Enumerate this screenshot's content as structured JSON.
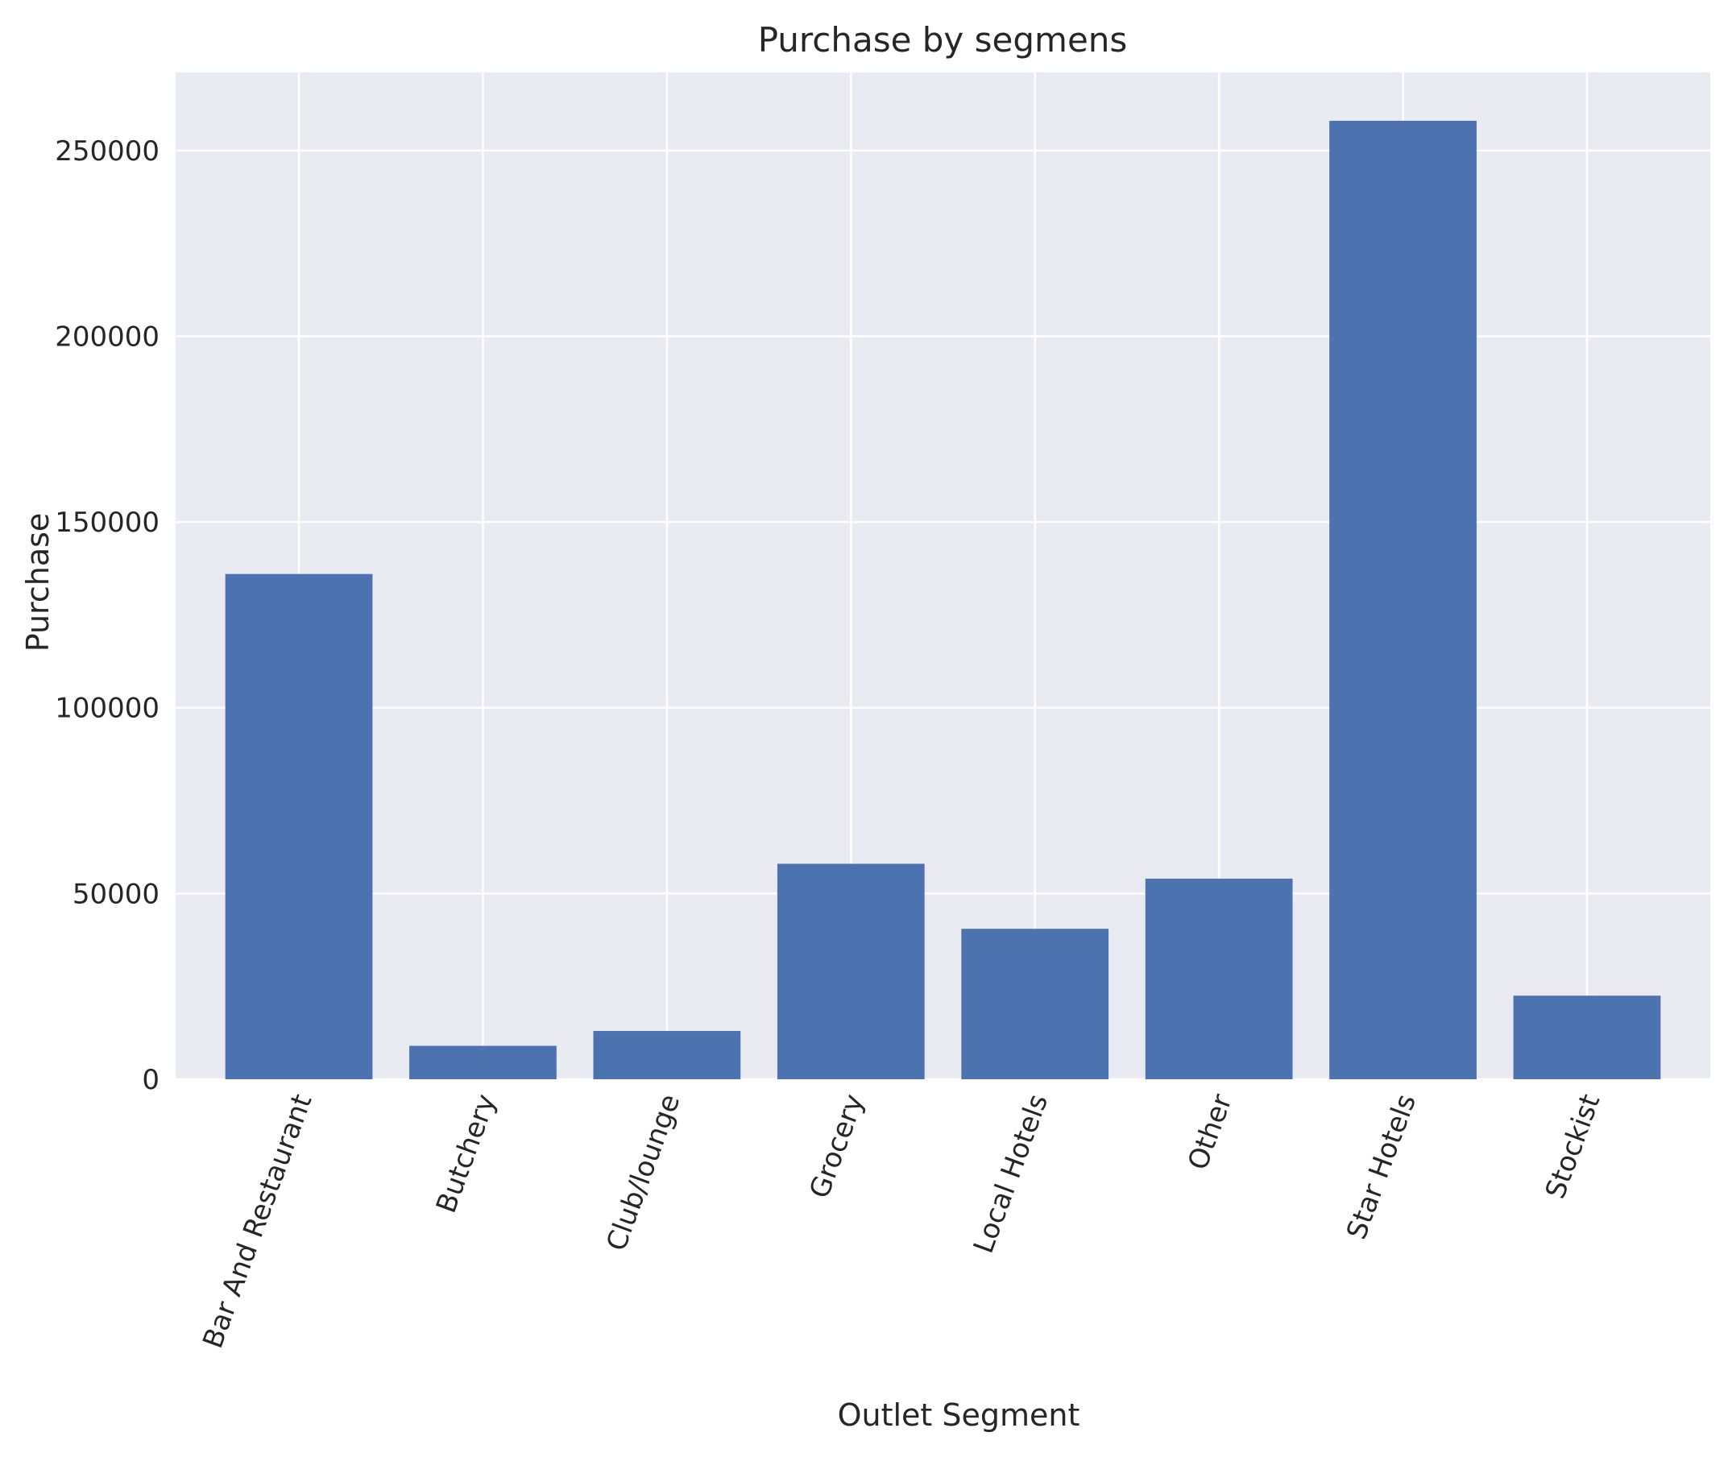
{
  "chart_data": {
    "type": "bar",
    "title": "Purchase by segmens",
    "xlabel": "Outlet Segment",
    "ylabel": "Purchase",
    "categories": [
      "Bar And Restaurant",
      "Butchery",
      "Club/lounge",
      "Grocery",
      "Local Hotels",
      "Other",
      "Star Hotels",
      "Stockist"
    ],
    "values": [
      136000,
      9000,
      13000,
      58000,
      40500,
      54000,
      258000,
      22500
    ],
    "ylim": [
      0,
      271000
    ],
    "yticks": [
      0,
      50000,
      100000,
      150000,
      200000,
      250000
    ],
    "ytick_labels": [
      "0",
      "50000",
      "100000",
      "150000",
      "200000",
      "250000"
    ],
    "grid": true,
    "colors": {
      "bar": "#4c72b0",
      "plot_background": "#eaeaf2",
      "grid": "#ffffff",
      "text": "#262626"
    }
  }
}
